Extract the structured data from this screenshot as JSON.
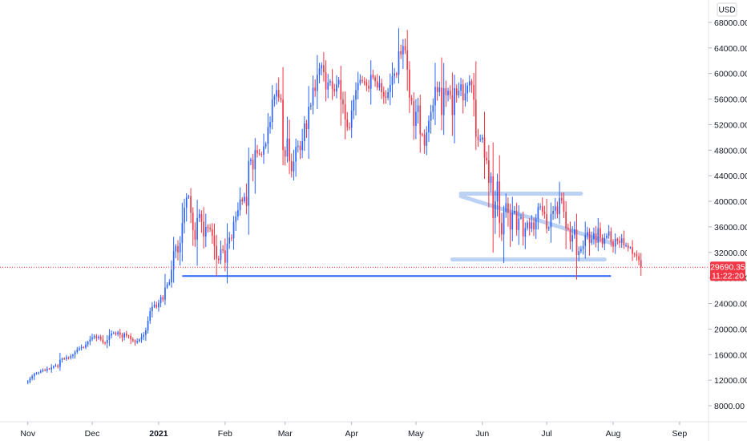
{
  "chart_data": {
    "type": "candlestick",
    "instrument_currency": "USD",
    "current_price": "29690.35",
    "countdown": "11:22:20",
    "y_ticks": [
      8000,
      12000,
      16000,
      20000,
      24000,
      28000,
      32000,
      36000,
      40000,
      44000,
      48000,
      52000,
      56000,
      60000,
      64000,
      68000
    ],
    "y_tick_labels": [
      "8000.00",
      "12000.00",
      "16000.00",
      "20000.00",
      "24000.00",
      "28000.00",
      "32000.00",
      "36000.00",
      "40000.00",
      "44000.00",
      "48000.00",
      "52000.00",
      "56000.00",
      "60000.00",
      "64000.00",
      "68000.00"
    ],
    "ylim": [
      6500,
      70500
    ],
    "xlim": [
      "2020-10-19",
      "2021-09-13"
    ],
    "x_ticks": [
      {
        "date": "2020-11-01",
        "label": "Nov",
        "bold": false
      },
      {
        "date": "2020-12-01",
        "label": "Dec",
        "bold": false
      },
      {
        "date": "2021-01-01",
        "label": "2021",
        "bold": true
      },
      {
        "date": "2021-02-01",
        "label": "Feb",
        "bold": false
      },
      {
        "date": "2021-03-01",
        "label": "Mar",
        "bold": false
      },
      {
        "date": "2021-04-01",
        "label": "Apr",
        "bold": false
      },
      {
        "date": "2021-05-01",
        "label": "May",
        "bold": false
      },
      {
        "date": "2021-06-01",
        "label": "Jun",
        "bold": false
      },
      {
        "date": "2021-07-01",
        "label": "Jul",
        "bold": false
      },
      {
        "date": "2021-08-01",
        "label": "Aug",
        "bold": false
      },
      {
        "date": "2021-09-01",
        "label": "Sep",
        "bold": false
      }
    ],
    "closes": [
      11800,
      12300,
      12600,
      13000,
      13100,
      13200,
      13400,
      13600,
      13500,
      13800,
      13700,
      14000,
      14200,
      14300,
      14100,
      15200,
      15400,
      15300,
      15600,
      15500,
      15800,
      16000,
      16400,
      16800,
      17000,
      17200,
      17100,
      17600,
      18000,
      18400,
      18700,
      18900,
      18600,
      18800,
      18400,
      17900,
      17800,
      18300,
      19000,
      19300,
      19400,
      19200,
      19500,
      19100,
      18700,
      19300,
      19000,
      18900,
      18400,
      18200,
      17900,
      18100,
      18400,
      18800,
      19100,
      19800,
      21300,
      22800,
      23500,
      23800,
      23400,
      24100,
      25000,
      24600,
      26500,
      27000,
      27300,
      29300,
      32200,
      33000,
      32000,
      33500,
      36600,
      39000,
      40600,
      40800,
      38200,
      35500,
      34000,
      37400,
      38000,
      36800,
      34500,
      36000,
      35800,
      35600,
      34600,
      33000,
      31000,
      30800,
      32500,
      32300,
      30400,
      33400,
      34300,
      34200,
      36800,
      37600,
      38600,
      40300,
      40000,
      40700,
      39300,
      46300,
      46500,
      45000,
      48000,
      47500,
      47400,
      47300,
      48600,
      49000,
      51600,
      52400,
      55900,
      56400,
      57400,
      56200,
      55900,
      48000,
      47000,
      49800,
      46300,
      44700,
      46200,
      48500,
      48700,
      48000,
      49400,
      52200,
      51300,
      54800,
      55000,
      57800,
      57300,
      59800,
      60800,
      61300,
      60200,
      57500,
      58600,
      58800,
      57600,
      57200,
      58300,
      59000,
      55900,
      55200,
      52800,
      51600,
      51500,
      54200,
      55900,
      57400,
      58500,
      59000,
      58800,
      58600,
      58100,
      57600,
      59800,
      59400,
      58800,
      57800,
      58500,
      57100,
      56400,
      56200,
      57100,
      58200,
      59600,
      60000,
      59800,
      63500,
      63000,
      64300,
      63600,
      60600,
      56200,
      55700,
      51800,
      54000,
      55000,
      50500,
      50400,
      48700,
      50800,
      52600,
      54000,
      55000,
      57900,
      57100,
      57800,
      53500,
      57700,
      56600,
      57300,
      56600,
      53500,
      57700,
      56600,
      57300,
      58300,
      55800,
      56900,
      58100,
      58800,
      58200,
      55900,
      50100,
      49600,
      49700,
      50000,
      46800,
      46400,
      42900,
      43900,
      37400,
      40000,
      43100,
      36600,
      34800,
      38300,
      39700,
      38200,
      35600,
      38200,
      38500,
      35500,
      37300,
      37500,
      34500,
      35800,
      36700,
      35700,
      36700,
      35600,
      37300,
      39100,
      39200,
      38400,
      38000,
      35700,
      35900,
      38000,
      38500,
      39200,
      38000,
      40500,
      40100,
      38400,
      35800,
      35600,
      33700,
      34700,
      35600,
      31600,
      32200,
      32500,
      33000,
      34700,
      35200,
      33500,
      34100,
      35000,
      33500,
      35800,
      34300,
      33300,
      34300,
      34600,
      35300,
      33700,
      32900,
      34100,
      33800,
      33500,
      34200,
      33100,
      33100,
      32700,
      32800,
      31800,
      31700,
      31400,
      30800,
      29690
    ]
  },
  "annotations": {
    "support_line_level": 28300,
    "support_line_start": "2021-01-12",
    "support_line_end": "2021-07-31"
  }
}
